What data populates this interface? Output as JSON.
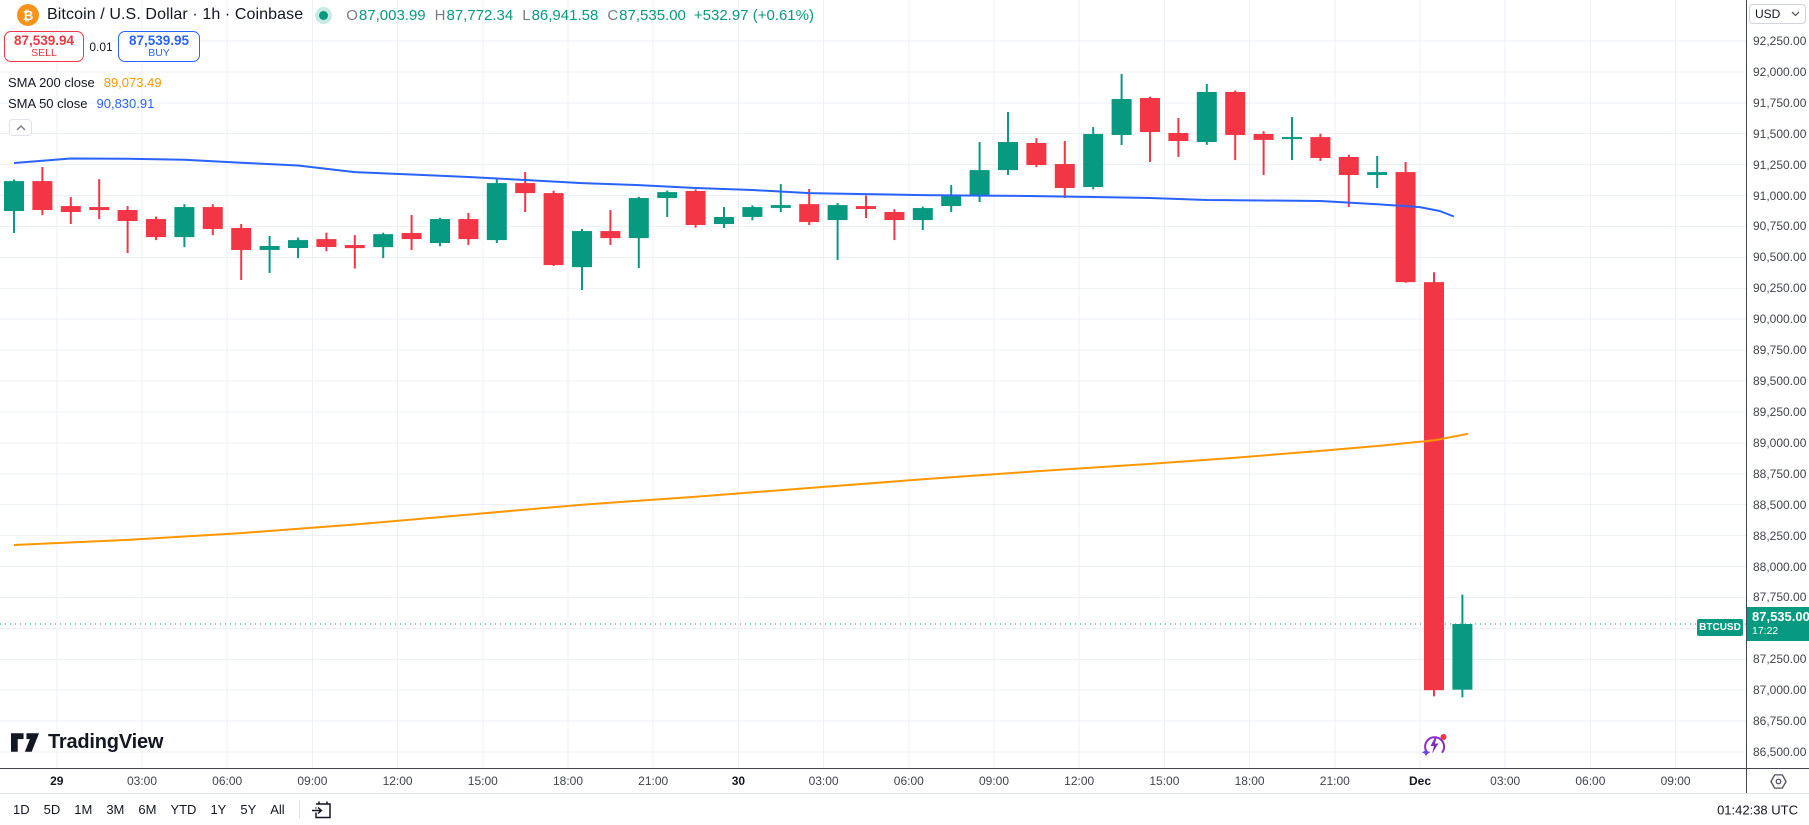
{
  "header": {
    "title": "Bitcoin / U.S. Dollar · 1h · Coinbase",
    "ohlc": [
      {
        "label": "O",
        "value": "87,003.99"
      },
      {
        "label": "H",
        "value": "87,772.34"
      },
      {
        "label": "L",
        "value": "86,941.58"
      },
      {
        "label": "C",
        "value": "87,535.00"
      }
    ],
    "change": "+532.97 (+0.61%)",
    "sell_price": "87,539.94",
    "sell_label": "SELL",
    "spread": "0.01",
    "buy_price": "87,539.95",
    "buy_label": "BUY",
    "indicators": [
      {
        "label": "SMA 200 close",
        "value": "89,073.49",
        "color": "#ff9800"
      },
      {
        "label": "SMA 50 close",
        "value": "90,830.91",
        "color": "#2962ff"
      }
    ]
  },
  "watermark": "TradingView",
  "price_axis": {
    "currency": "USD",
    "labels": [
      "92,250.00",
      "92,000.00",
      "91,750.00",
      "91,500.00",
      "91,250.00",
      "91,000.00",
      "90,750.00",
      "90,500.00",
      "90,250.00",
      "90,000.00",
      "89,750.00",
      "89,500.00",
      "89,250.00",
      "89,000.00",
      "88,750.00",
      "88,500.00",
      "88,250.00",
      "88,000.00",
      "87,750.00",
      "87,500.00",
      "87,250.00",
      "87,000.00",
      "86,750.00",
      "86,500.00"
    ],
    "badge": {
      "symbol": "BTCUSD",
      "price": "87,535.00",
      "countdown": "17:22"
    }
  },
  "time_axis": {
    "labels": [
      {
        "text": "29",
        "day": true
      },
      {
        "text": "03:00"
      },
      {
        "text": "06:00"
      },
      {
        "text": "09:00"
      },
      {
        "text": "12:00"
      },
      {
        "text": "15:00"
      },
      {
        "text": "18:00"
      },
      {
        "text": "21:00"
      },
      {
        "text": "30",
        "day": true
      },
      {
        "text": "03:00"
      },
      {
        "text": "06:00"
      },
      {
        "text": "09:00"
      },
      {
        "text": "12:00"
      },
      {
        "text": "15:00"
      },
      {
        "text": "18:00"
      },
      {
        "text": "21:00"
      },
      {
        "text": "Dec",
        "day": true
      },
      {
        "text": "03:00"
      },
      {
        "text": "06:00"
      },
      {
        "text": "09:00"
      }
    ],
    "clock": "01:42:38 UTC"
  },
  "toolbar": {
    "ranges": [
      "1D",
      "5D",
      "1M",
      "3M",
      "6M",
      "YTD",
      "1Y",
      "5Y",
      "All"
    ]
  },
  "chart_data": {
    "type": "candlestick",
    "symbol": "BTCUSD",
    "exchange": "Coinbase",
    "interval": "1h",
    "price_range": {
      "min": 86500,
      "max": 92250,
      "tick": 250
    },
    "last_price": 87535.0,
    "last_bar_countdown": "17:22",
    "colors": {
      "up": "#089981",
      "down": "#f23645",
      "sma50": "#2962ff",
      "sma200": "#ff9800",
      "grid": "#ecf0f7"
    },
    "candles_start": "Nov 28 22:00 UTC",
    "candles_ohlc": [
      [
        90875,
        91130,
        90697,
        91117
      ],
      [
        91117,
        91231,
        90842,
        90883
      ],
      [
        90915,
        90988,
        90770,
        90867
      ],
      [
        90907,
        91133,
        90810,
        90883
      ],
      [
        90883,
        90915,
        90535,
        90794
      ],
      [
        90810,
        90830,
        90640,
        90664
      ],
      [
        90664,
        90930,
        90583,
        90907
      ],
      [
        90907,
        90930,
        90680,
        90730
      ],
      [
        90738,
        90770,
        90317,
        90560
      ],
      [
        90560,
        90673,
        90374,
        90592
      ],
      [
        90576,
        90660,
        90494,
        90640
      ],
      [
        90648,
        90700,
        90550,
        90584
      ],
      [
        90600,
        90680,
        90410,
        90575
      ],
      [
        90583,
        90700,
        90494,
        90688
      ],
      [
        90697,
        90843,
        90560,
        90648
      ],
      [
        90616,
        90820,
        90590,
        90810
      ],
      [
        90810,
        90860,
        90600,
        90648
      ],
      [
        90640,
        91141,
        90616,
        91101
      ],
      [
        91101,
        91190,
        90867,
        91020
      ],
      [
        91020,
        91040,
        90430,
        90438
      ],
      [
        90421,
        90730,
        90236,
        90713
      ],
      [
        90713,
        90883,
        90600,
        90656
      ],
      [
        90656,
        90990,
        90414,
        90980
      ],
      [
        90980,
        91040,
        90827,
        91028
      ],
      [
        91037,
        91050,
        90740,
        90762
      ],
      [
        90770,
        90907,
        90738,
        90827
      ],
      [
        90827,
        90920,
        90800,
        90907
      ],
      [
        90900,
        91093,
        90867,
        90923
      ],
      [
        90931,
        91053,
        90762,
        90786
      ],
      [
        90802,
        90940,
        90478,
        90923
      ],
      [
        90915,
        91000,
        90818,
        90891
      ],
      [
        90867,
        90890,
        90640,
        90802
      ],
      [
        90802,
        90910,
        90721,
        90899
      ],
      [
        90915,
        91085,
        90867,
        90996
      ],
      [
        91004,
        91433,
        90948,
        91206
      ],
      [
        91206,
        91676,
        91166,
        91433
      ],
      [
        91425,
        91465,
        91230,
        91247
      ],
      [
        91255,
        91441,
        90980,
        91061
      ],
      [
        91069,
        91554,
        91050,
        91498
      ],
      [
        91490,
        91983,
        91409,
        91781
      ],
      [
        91789,
        91800,
        91271,
        91514
      ],
      [
        91506,
        91627,
        91312,
        91441
      ],
      [
        91433,
        91902,
        91410,
        91838
      ],
      [
        91838,
        91850,
        91287,
        91490
      ],
      [
        91498,
        91520,
        91166,
        91450
      ],
      [
        91465,
        91635,
        91287,
        91473
      ],
      [
        91473,
        91500,
        91280,
        91304
      ],
      [
        91312,
        91330,
        90907,
        91166
      ],
      [
        91166,
        91320,
        91061,
        91190
      ],
      [
        91190,
        91271,
        90295,
        90300
      ],
      [
        90300,
        90380,
        86950,
        87000
      ],
      [
        87003.99,
        87772.34,
        86941.58,
        87535.0
      ]
    ],
    "sma50_points": [
      [
        0,
        91263
      ],
      [
        2,
        91300
      ],
      [
        4,
        91298
      ],
      [
        6,
        91290
      ],
      [
        8,
        91266
      ],
      [
        10,
        91243
      ],
      [
        12,
        91190
      ],
      [
        14,
        91170
      ],
      [
        16,
        91150
      ],
      [
        18,
        91126
      ],
      [
        20,
        91101
      ],
      [
        22,
        91085
      ],
      [
        24,
        91061
      ],
      [
        26,
        91045
      ],
      [
        28,
        91020
      ],
      [
        30,
        91012
      ],
      [
        32,
        91004
      ],
      [
        34,
        91000
      ],
      [
        36,
        90996
      ],
      [
        38,
        90988
      ],
      [
        40,
        90980
      ],
      [
        42,
        90964
      ],
      [
        44,
        90960
      ],
      [
        46,
        90956
      ],
      [
        48,
        90930
      ],
      [
        49.5,
        90907
      ],
      [
        50.2,
        90875
      ],
      [
        50.7,
        90831
      ]
    ],
    "sma200_points": [
      [
        0,
        88174
      ],
      [
        4,
        88215
      ],
      [
        8,
        88270
      ],
      [
        12,
        88340
      ],
      [
        16,
        88420
      ],
      [
        20,
        88500
      ],
      [
        24,
        88565
      ],
      [
        28,
        88635
      ],
      [
        32,
        88705
      ],
      [
        36,
        88770
      ],
      [
        40,
        88830
      ],
      [
        43,
        88880
      ],
      [
        46,
        88935
      ],
      [
        48,
        88975
      ],
      [
        50,
        89020
      ],
      [
        51.2,
        89073
      ]
    ]
  }
}
